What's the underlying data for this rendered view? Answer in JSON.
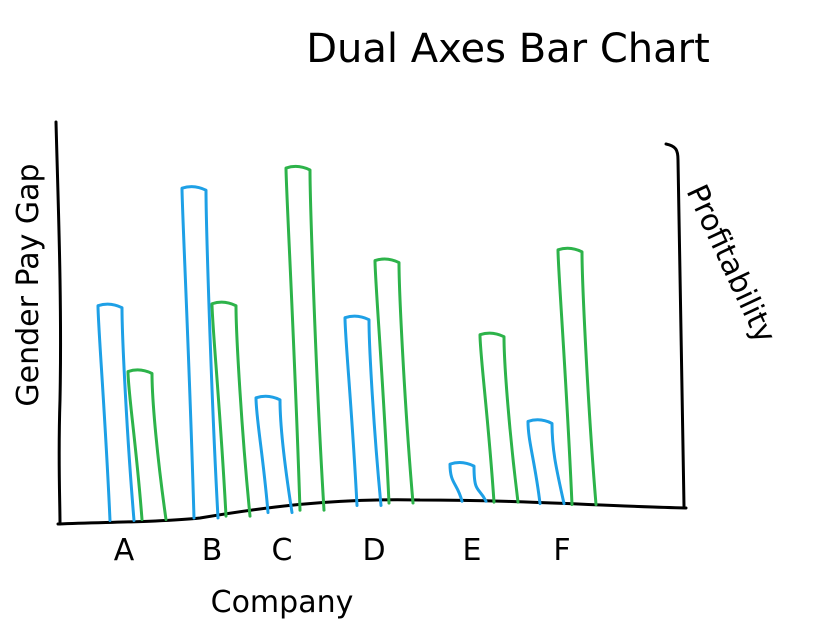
{
  "chart_data": {
    "type": "bar",
    "title": "Dual Axes Bar Chart",
    "xlabel": "Company",
    "ylabel_left": "Gender Pay Gap",
    "ylabel_right": "Profitability",
    "categories": [
      "A",
      "B",
      "C",
      "D",
      "E",
      "F"
    ],
    "series": [
      {
        "values": [
          5.5,
          8.5,
          3.0,
          5.0,
          1.0,
          2.2
        ],
        "color": "#1ea0e6",
        "axis": "left"
      },
      {
        "values": [
          3.8,
          5.5,
          9.0,
          6.5,
          4.5,
          6.8
        ],
        "color": "#2db34a",
        "axis": "right"
      }
    ],
    "ylim": [
      0,
      10
    ],
    "grid": false,
    "legend": "none"
  }
}
